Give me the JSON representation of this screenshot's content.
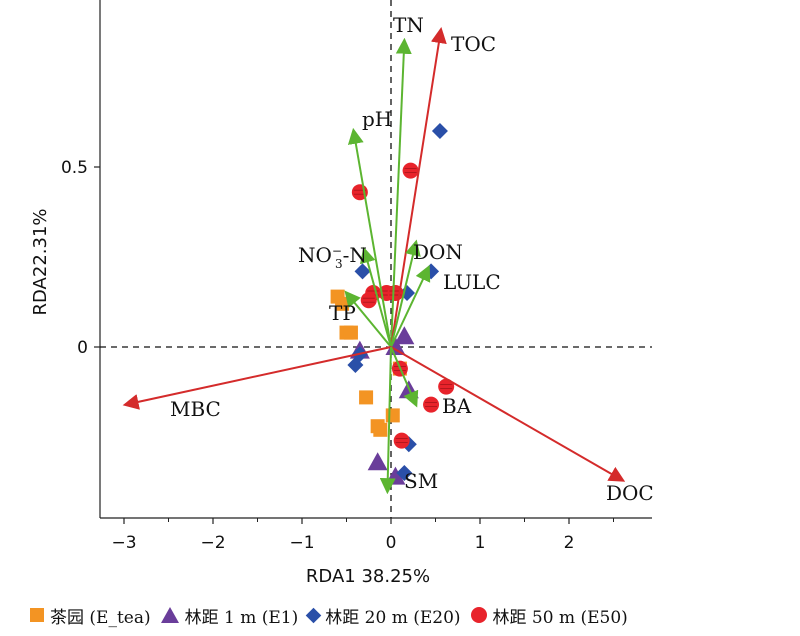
{
  "chart_data": {
    "type": "scatter",
    "subtype": "RDA biplot",
    "xlabel": "RDA1 38.25%",
    "ylabel": "RDA22.31%",
    "xlim": [
      -3.3,
      2.9
    ],
    "ylim": [
      -0.47,
      0.95
    ],
    "xticks": [
      -3,
      -2,
      -1,
      0,
      1,
      2
    ],
    "yticks": [
      0,
      0.5
    ],
    "xtick_labels": [
      "−3",
      "−2",
      "−1",
      "0",
      "1",
      "2"
    ],
    "ytick_labels": [
      "0",
      "0.5"
    ],
    "reference_lines": "dashed lines at x=0 and y=0",
    "grid": false,
    "legend_position": "bottom",
    "vectors": [
      {
        "label": "TN",
        "x": 0.15,
        "y": 0.85,
        "color": "#5cb531"
      },
      {
        "label": "TOC",
        "x": 0.56,
        "y": 0.88,
        "color": "#d42b2b"
      },
      {
        "label": "pH",
        "x": -0.42,
        "y": 0.6,
        "color": "#5cb531"
      },
      {
        "label": "DON",
        "x": 0.28,
        "y": 0.29,
        "color": "#5cb531"
      },
      {
        "label": "NO3-N",
        "x": -0.3,
        "y": 0.27,
        "color": "#5cb531"
      },
      {
        "label": "LULC",
        "x": 0.42,
        "y": 0.22,
        "color": "#5cb531"
      },
      {
        "label": "TP",
        "x": -0.5,
        "y": 0.15,
        "color": "#5cb531"
      },
      {
        "label": "MBC",
        "x": -2.98,
        "y": -0.16,
        "color": "#d42b2b"
      },
      {
        "label": "DOC",
        "x": 2.6,
        "y": -0.37,
        "color": "#d42b2b"
      },
      {
        "label": "BA",
        "x": 0.28,
        "y": -0.16,
        "color": "#5cb531"
      },
      {
        "label": "SM",
        "x": -0.04,
        "y": -0.4,
        "color": "#5cb531"
      }
    ],
    "vector_labels": {
      "TN": "TN",
      "TOC": "TOC",
      "pH": "pH",
      "DON": "DON",
      "NO3_base": "NO",
      "NO3_sub": "3",
      "NO3_sup": "−",
      "NO3_tail": "-N",
      "LULC": "LULC",
      "TP": "TP",
      "MBC": "MBC",
      "DOC": "DOC",
      "BA": "BA",
      "SM": "SM"
    },
    "series": [
      {
        "name": "茶园 (E_tea)",
        "marker": "square",
        "color": "#f39423",
        "points": [
          [
            -0.6,
            0.14
          ],
          [
            -0.55,
            0.12
          ],
          [
            -0.5,
            0.04
          ],
          [
            -0.45,
            0.04
          ],
          [
            -0.28,
            -0.14
          ],
          [
            -0.15,
            -0.22
          ],
          [
            -0.12,
            -0.23
          ],
          [
            0.02,
            -0.19
          ],
          [
            0.1,
            -0.06
          ]
        ]
      },
      {
        "name": "林距 1 m (E1)",
        "marker": "triangle",
        "color": "#6a3d9a",
        "points": [
          [
            -0.35,
            -0.01
          ],
          [
            0.05,
            0.0
          ],
          [
            0.15,
            0.03
          ],
          [
            -0.15,
            -0.32
          ],
          [
            0.05,
            -0.36
          ],
          [
            0.2,
            -0.12
          ]
        ]
      },
      {
        "name": "林距 20 m (E20)",
        "marker": "diamond",
        "color": "#2a4fa8",
        "points": [
          [
            0.55,
            0.6
          ],
          [
            -0.32,
            0.21
          ],
          [
            0.45,
            0.21
          ],
          [
            0.18,
            0.15
          ],
          [
            -0.35,
            -0.02
          ],
          [
            -0.4,
            -0.05
          ],
          [
            0.2,
            -0.27
          ],
          [
            0.15,
            -0.35
          ]
        ]
      },
      {
        "name": "林距 50 m (E50)",
        "marker": "circle",
        "color": "#e8232b",
        "points": [
          [
            -0.35,
            0.43
          ],
          [
            0.22,
            0.49
          ],
          [
            -0.2,
            0.15
          ],
          [
            -0.05,
            0.15
          ],
          [
            0.05,
            0.15
          ],
          [
            -0.25,
            0.13
          ],
          [
            0.1,
            -0.06
          ],
          [
            0.62,
            -0.11
          ],
          [
            0.45,
            -0.16
          ],
          [
            0.12,
            -0.26
          ]
        ]
      }
    ]
  }
}
